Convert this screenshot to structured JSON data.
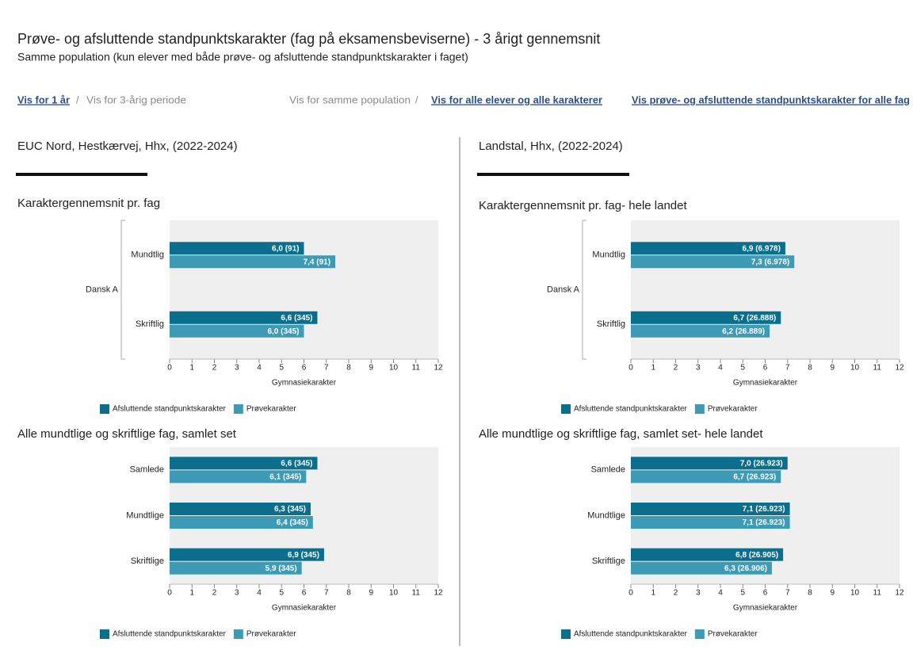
{
  "header": {
    "title": "Prøve- og afsluttende standpunktskarakter (fag på eksamensbeviserne) - 3 årigt gennemsnit",
    "subtitle": "Samme population (kun elever med både prøve- og afsluttende standpunktskarakter i faget)"
  },
  "nav": {
    "groups": [
      {
        "items": [
          "Vis for 1 år",
          "Vis for 3-årig periode"
        ],
        "separator": "/"
      },
      {
        "items": [
          "Vis for samme population",
          "Vis for alle elever og alle karakterer"
        ],
        "separator": "/"
      },
      {
        "items": [
          "Vis prøve- og afsluttende standpunktskarakter for alle fag"
        ]
      }
    ]
  },
  "panels": [
    {
      "title": "EUC Nord, Hestkærvej, Hhx, (2022-2024)"
    },
    {
      "title": "Landstal, Hhx, (2022-2024)"
    }
  ],
  "chart_data": [
    {
      "type": "bar",
      "horizontal": true,
      "title": "Karaktergennemsnit pr. fag",
      "group": "Dansk A",
      "categories": [
        "Mundtlig",
        "Skriftlig"
      ],
      "series": [
        {
          "name": "Afsluttende standpunktskarakter",
          "color": "#0a6f8c",
          "values": [
            6.0,
            6.6
          ],
          "value_labels": [
            "6,0 (91)",
            "6,6 (345)"
          ]
        },
        {
          "name": "Prøvekarakter",
          "color": "#3e9bb5",
          "values": [
            7.4,
            6.0
          ],
          "value_labels": [
            "7,4 (91)",
            "6,0 (345)"
          ]
        }
      ],
      "xlim": [
        0,
        12
      ],
      "xticks": [
        0,
        1,
        2,
        3,
        4,
        5,
        6,
        7,
        8,
        9,
        10,
        11,
        12
      ],
      "xlabel": "Gymnasiekarakter"
    },
    {
      "type": "bar",
      "horizontal": true,
      "title": "Karaktergennemsnit pr. fag- hele landet",
      "group": "Dansk A",
      "categories": [
        "Mundtlig",
        "Skriftlig"
      ],
      "series": [
        {
          "name": "Afsluttende standpunktskarakter",
          "color": "#0a6f8c",
          "values": [
            6.9,
            6.7
          ],
          "value_labels": [
            "6,9 (6.978)",
            "6,7 (26.888)"
          ]
        },
        {
          "name": "Prøvekarakter",
          "color": "#3e9bb5",
          "values": [
            7.3,
            6.2
          ],
          "value_labels": [
            "7,3 (6.978)",
            "6,2 (26.889)"
          ]
        }
      ],
      "xlim": [
        0,
        12
      ],
      "xticks": [
        0,
        1,
        2,
        3,
        4,
        5,
        6,
        7,
        8,
        9,
        10,
        11,
        12
      ],
      "xlabel": "Gymnasiekarakter"
    },
    {
      "type": "bar",
      "horizontal": true,
      "title": "Alle mundtlige og skriftlige fag, samlet set",
      "categories": [
        "Samlede",
        "Mundtlige",
        "Skriftlige"
      ],
      "series": [
        {
          "name": "Afsluttende standpunktskarakter",
          "color": "#0a6f8c",
          "values": [
            6.6,
            6.3,
            6.9
          ],
          "value_labels": [
            "6,6 (345)",
            "6,3 (345)",
            "6,9 (345)"
          ]
        },
        {
          "name": "Prøvekarakter",
          "color": "#3e9bb5",
          "values": [
            6.1,
            6.4,
            5.9
          ],
          "value_labels": [
            "6,1 (345)",
            "6,4 (345)",
            "5,9 (345)"
          ]
        }
      ],
      "xlim": [
        0,
        12
      ],
      "xticks": [
        0,
        1,
        2,
        3,
        4,
        5,
        6,
        7,
        8,
        9,
        10,
        11,
        12
      ],
      "xlabel": "Gymnasiekarakter"
    },
    {
      "type": "bar",
      "horizontal": true,
      "title": "Alle mundtlige og skriftlige fag, samlet set- hele landet",
      "categories": [
        "Samlede",
        "Mundtlige",
        "Skriftlige"
      ],
      "series": [
        {
          "name": "Afsluttende standpunktskarakter",
          "color": "#0a6f8c",
          "values": [
            7.0,
            7.1,
            6.8
          ],
          "value_labels": [
            "7,0 (26.923)",
            "7,1 (26.923)",
            "6,8 (26.905)"
          ]
        },
        {
          "name": "Prøvekarakter",
          "color": "#3e9bb5",
          "values": [
            6.7,
            7.1,
            6.3
          ],
          "value_labels": [
            "6,7 (26.923)",
            "7,1 (26.923)",
            "6,3 (26.906)"
          ]
        }
      ],
      "xlim": [
        0,
        12
      ],
      "xticks": [
        0,
        1,
        2,
        3,
        4,
        5,
        6,
        7,
        8,
        9,
        10,
        11,
        12
      ],
      "xlabel": "Gymnasiekarakter"
    }
  ]
}
